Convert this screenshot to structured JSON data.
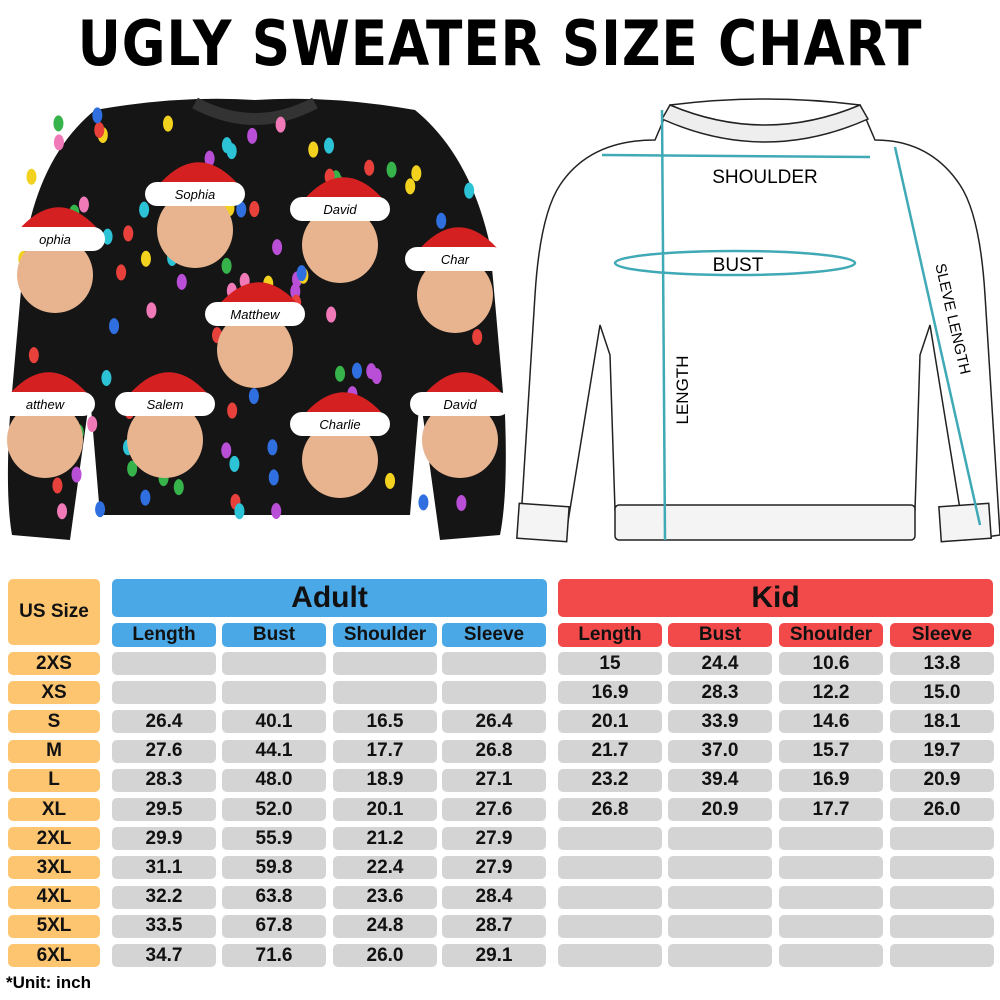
{
  "title": "UGLY SWEATER SIZE CHART",
  "sweater_photo": {
    "names": [
      "Sophia",
      "David",
      "ophia",
      "Char",
      "Matthew",
      "atthew",
      "Salem",
      "Charlie",
      "David"
    ]
  },
  "diagram": {
    "shoulder": "SHOULDER",
    "bust": "BUST",
    "length": "LENGTH",
    "sleeve_length": "SLEVE LENGTH",
    "accent": "#3fa9b5"
  },
  "table": {
    "size_header": "US Size",
    "adult_header": "Adult",
    "kid_header": "Kid",
    "columns": [
      "Length",
      "Bust",
      "Shoulder",
      "Sleeve"
    ],
    "colors": {
      "size": "#fdc570",
      "adult": "#4aa8e6",
      "kid": "#f24a4a",
      "cell": "#d4d4d4"
    },
    "rows": [
      {
        "size": "2XS",
        "adult": [
          "",
          "",
          "",
          ""
        ],
        "kid": [
          "15",
          "24.4",
          "10.6",
          "13.8"
        ]
      },
      {
        "size": "XS",
        "adult": [
          "",
          "",
          "",
          ""
        ],
        "kid": [
          "16.9",
          "28.3",
          "12.2",
          "15.0"
        ]
      },
      {
        "size": "S",
        "adult": [
          "26.4",
          "40.1",
          "16.5",
          "26.4"
        ],
        "kid": [
          "20.1",
          "33.9",
          "14.6",
          "18.1"
        ]
      },
      {
        "size": "M",
        "adult": [
          "27.6",
          "44.1",
          "17.7",
          "26.8"
        ],
        "kid": [
          "21.7",
          "37.0",
          "15.7",
          "19.7"
        ]
      },
      {
        "size": "L",
        "adult": [
          "28.3",
          "48.0",
          "18.9",
          "27.1"
        ],
        "kid": [
          "23.2",
          "39.4",
          "16.9",
          "20.9"
        ]
      },
      {
        "size": "XL",
        "adult": [
          "29.5",
          "52.0",
          "20.1",
          "27.6"
        ],
        "kid": [
          "26.8",
          "20.9",
          "17.7",
          "26.0"
        ]
      },
      {
        "size": "2XL",
        "adult": [
          "29.9",
          "55.9",
          "21.2",
          "27.9"
        ],
        "kid": [
          "",
          "",
          "",
          ""
        ]
      },
      {
        "size": "3XL",
        "adult": [
          "31.1",
          "59.8",
          "22.4",
          "27.9"
        ],
        "kid": [
          "",
          "",
          "",
          ""
        ]
      },
      {
        "size": "4XL",
        "adult": [
          "32.2",
          "63.8",
          "23.6",
          "28.4"
        ],
        "kid": [
          "",
          "",
          "",
          ""
        ]
      },
      {
        "size": "5XL",
        "adult": [
          "33.5",
          "67.8",
          "24.8",
          "28.7"
        ],
        "kid": [
          "",
          "",
          "",
          ""
        ]
      },
      {
        "size": "6XL",
        "adult": [
          "34.7",
          "71.6",
          "26.0",
          "29.1"
        ],
        "kid": [
          "",
          "",
          "",
          ""
        ]
      }
    ],
    "unit_note": "*Unit: inch"
  }
}
